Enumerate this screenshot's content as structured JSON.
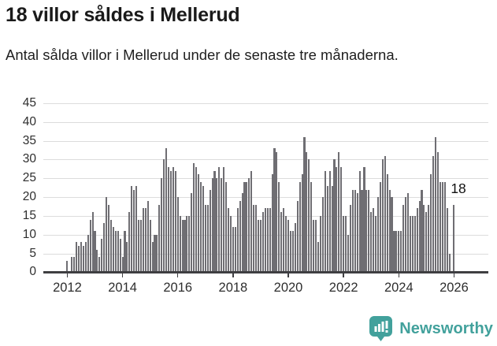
{
  "title": "18 villor såldes i Mellerud",
  "subtitle": "Antal sålda villor i Mellerud under de senaste tre månaderna.",
  "branding": {
    "name": "Newsworthy",
    "logo_icon": "bar-chart-speech-bubble-exclamation",
    "logo_color": "#42a19c"
  },
  "colors": {
    "bar": "#6f6e73",
    "highlight": "#00a29a",
    "gridline": "#dcdcdc",
    "axis": "#3f3f42",
    "text": "#1a1a1a"
  },
  "chart_data": {
    "type": "bar",
    "title": "18 villor såldes i Mellerud",
    "subtitle": "Antal sålda villor i Mellerud under de senaste tre månaderna.",
    "frequency": "monthly",
    "start_year": 2012,
    "ylim": [
      0,
      45
    ],
    "yticks": [
      0,
      5,
      10,
      15,
      20,
      25,
      30,
      35,
      40,
      45
    ],
    "xtick_labels": [
      "2012",
      "2014",
      "2016",
      "2018",
      "2020",
      "2022",
      "2024",
      "2026"
    ],
    "xtick_month_indices": [
      0,
      24,
      48,
      72,
      96,
      120,
      144,
      168
    ],
    "grid": true,
    "legend": false,
    "values": [
      3,
      null,
      4,
      4,
      8,
      7,
      8,
      7,
      8,
      10,
      14,
      16,
      11,
      6,
      4,
      9,
      13,
      20,
      18,
      14,
      12,
      11,
      11,
      9,
      4,
      11,
      8,
      16,
      23,
      22,
      23,
      14,
      14,
      17,
      17,
      19,
      14,
      8,
      10,
      10,
      18,
      25,
      30,
      33,
      28,
      27,
      28,
      27,
      20,
      15,
      14,
      14,
      15,
      15,
      21,
      29,
      28,
      26,
      24,
      23,
      18,
      18,
      22,
      25,
      27,
      25,
      28,
      25,
      28,
      24,
      17,
      15,
      12,
      12,
      17,
      19,
      21,
      24,
      24,
      25,
      27,
      18,
      18,
      14,
      14,
      16,
      17,
      17,
      17,
      26,
      33,
      32,
      24,
      16,
      17,
      15,
      14,
      11,
      11,
      13,
      19,
      24,
      26,
      36,
      32,
      30,
      24,
      14,
      14,
      8,
      15,
      20,
      27,
      23,
      27,
      23,
      30,
      28,
      32,
      28,
      15,
      15,
      10,
      18,
      22,
      22,
      21,
      27,
      22,
      28,
      22,
      22,
      16,
      17,
      15,
      20,
      24,
      30,
      31,
      26,
      22,
      20,
      11,
      11,
      11,
      11,
      18,
      20,
      21,
      15,
      15,
      15,
      17,
      19,
      22,
      18,
      16,
      18,
      26,
      31,
      36,
      32,
      24,
      24,
      24,
      17,
      5,
      null,
      18
    ],
    "highlight": {
      "index": 169,
      "value": 18,
      "label": "18",
      "color": "#00a29a"
    }
  }
}
